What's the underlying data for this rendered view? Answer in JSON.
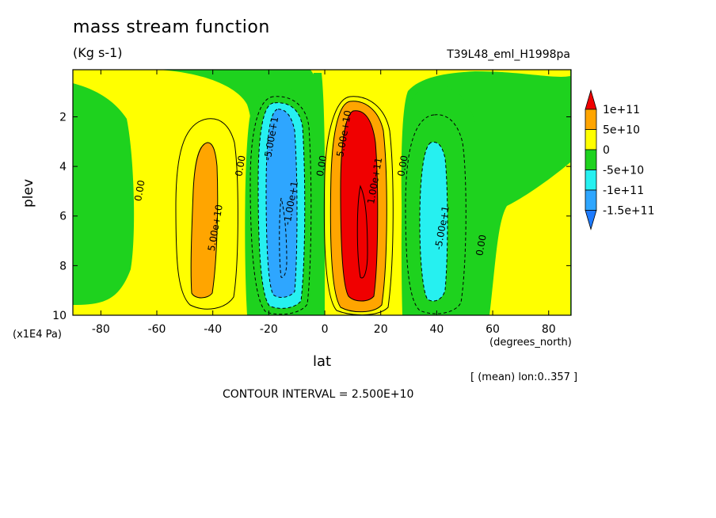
{
  "header": {
    "title": "mass stream function",
    "units": "(Kg s-1)",
    "run": "T39L48_eml_H1998pa"
  },
  "footer": {
    "mean_note": "[ (mean) lon:0..357 ]",
    "contour_interval": "CONTOUR INTERVAL = 2.500E+10"
  },
  "colors": {
    "le_-1.5e11": "#1e7bff",
    "-1.5e11_-1e11": "#2ea6ff",
    "-1e11_-5e10": "#26f0f0",
    "-5e10_0": "#1ed21e",
    "0_5e10": "#ffff00",
    "5e10_1e11": "#ffa500",
    "ge_1e11": "#f00000"
  },
  "chart_data": {
    "type": "heatmap",
    "plot_type": "filled contour",
    "title": "mass stream function",
    "units": "(Kg s-1)",
    "xlabel": "lat",
    "xunits": "(degrees_north)",
    "ylabel": "plev",
    "yunits": "(x1E4 Pa)",
    "xlim": [
      -90,
      88
    ],
    "ylim": [
      10,
      0.1
    ],
    "y_axis_inverted": true,
    "xticks": [
      -80,
      -60,
      -40,
      -20,
      0,
      20,
      40,
      60,
      80
    ],
    "xtick_labels": [
      "-80",
      "-60",
      "-40",
      "-20",
      "0",
      "20",
      "40",
      "60",
      "80"
    ],
    "yticks": [
      2,
      4,
      6,
      8,
      10
    ],
    "ytick_labels": [
      "2",
      "4",
      "6",
      "8",
      "10"
    ],
    "colorbar": {
      "labels": [
        "1e+11",
        "5e+10",
        "0",
        "-5e+10",
        "-1e+11",
        "-1.5e+11"
      ],
      "levels": [
        -150000000000.0,
        -100000000000.0,
        -50000000000.0,
        0,
        50000000000.0,
        100000000000.0
      ],
      "placement": "right"
    },
    "contour_labels": [
      {
        "text": "0.00",
        "lat": -65,
        "plev": 5.0
      },
      {
        "text": "0.00",
        "lat": -29,
        "plev": 4.0
      },
      {
        "text": "0.00",
        "lat": 0,
        "plev": 4.0
      },
      {
        "text": "0.00",
        "lat": 29,
        "plev": 4.0
      },
      {
        "text": "0.00",
        "lat": 57,
        "plev": 7.2
      },
      {
        "text": "5.00e+10",
        "lat": -38,
        "plev": 6.5
      },
      {
        "text": "-5.00e+1",
        "lat": -18,
        "plev": 2.9
      },
      {
        "text": "-1.00e+1",
        "lat": -11,
        "plev": 5.5
      },
      {
        "text": "5.00e+10",
        "lat": 8,
        "plev": 2.7
      },
      {
        "text": "1.00e+11",
        "lat": 19,
        "plev": 4.6
      },
      {
        "text": "-5.00e+1",
        "lat": 43,
        "plev": 6.5
      }
    ],
    "features": [
      {
        "sign": "positive",
        "center_lat": -40,
        "plev_range": [
          3.0,
          9.3
        ],
        "max_level": "5e+10"
      },
      {
        "sign": "negative",
        "center_lat": -14,
        "plev_range": [
          1.7,
          9.5
        ],
        "min_level": "-1.5e+11"
      },
      {
        "sign": "positive",
        "center_lat": 14,
        "plev_range": [
          1.5,
          9.5
        ],
        "max_level": "1e+11"
      },
      {
        "sign": "negative",
        "center_lat": 42,
        "plev_range": [
          3.0,
          9.3
        ],
        "min_level": "-1e+11"
      }
    ]
  }
}
